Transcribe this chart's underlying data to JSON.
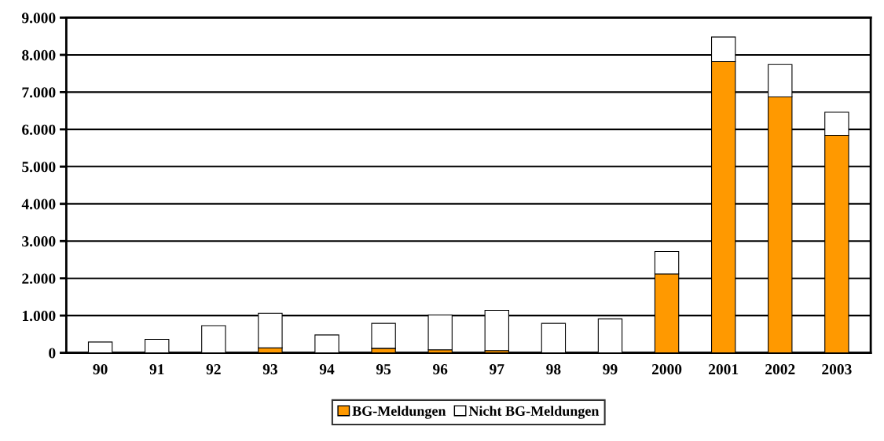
{
  "chart_data": {
    "type": "bar",
    "stacked": true,
    "categories": [
      "90",
      "91",
      "92",
      "93",
      "94",
      "95",
      "96",
      "97",
      "98",
      "99",
      "2000",
      "2001",
      "2002",
      "2003"
    ],
    "series": [
      {
        "name": "BG-Meldungen",
        "color": "#ff9900",
        "values": [
          0,
          0,
          0,
          130,
          null,
          120,
          80,
          60,
          null,
          null,
          2120,
          7820,
          6870,
          5840
        ]
      },
      {
        "name": "Nicht BG-Meldungen",
        "color": "#ffffff",
        "values": [
          290,
          360,
          730,
          930,
          480,
          670,
          940,
          1080,
          790,
          910,
          600,
          660,
          870,
          620
        ]
      }
    ],
    "ylim": [
      0,
      9000
    ],
    "yticks": [
      0,
      {
        "value": 1000,
        "label": "1.000"
      },
      {
        "value": 2000,
        "label": "2.000"
      },
      {
        "value": 3000,
        "label": "3.000"
      },
      {
        "value": 4000,
        "label": "4.000"
      },
      {
        "value": 5000,
        "label": "5.000"
      },
      {
        "value": 6000,
        "label": "6.000"
      },
      {
        "value": 7000,
        "label": "7.000"
      },
      {
        "value": 8000,
        "label": "8.000"
      },
      {
        "value": 9000,
        "label": "9.000"
      }
    ],
    "grid": "y",
    "legend": "bottom"
  }
}
